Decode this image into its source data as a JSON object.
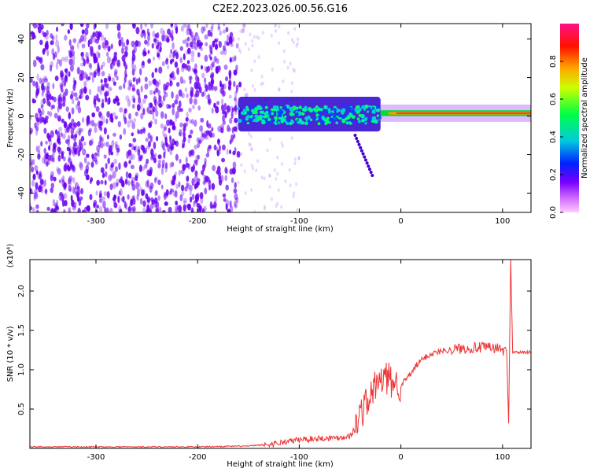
{
  "title": "C2E2.2023.026.00.56.G16",
  "colors": {
    "snr_line": "#ee3333",
    "spectrum_scatter": "#6a00f0",
    "colorbar_stops": [
      "#ff33ff",
      "#8800ff",
      "#0000ff",
      "#00cccc",
      "#00ff00",
      "#ffee00",
      "#ff8800",
      "#ff0033",
      "#ff1177"
    ]
  },
  "chart_data": [
    {
      "type": "heatmap",
      "title": "C2E2.2023.026.00.56.G16",
      "xlabel": "Height of straight line (km)",
      "ylabel": "Frequency (Hz)",
      "xlim": [
        -365,
        128
      ],
      "ylim": [
        -50,
        48
      ],
      "x_ticks": [
        -300,
        -200,
        -100,
        0,
        100
      ],
      "x_tick_labels": [
        "-300",
        "-200",
        "-100",
        "0",
        "100"
      ],
      "y_ticks": [
        -40,
        -20,
        0,
        20,
        40
      ],
      "y_tick_labels": [
        "-40",
        "-20",
        "0",
        "20",
        "40"
      ],
      "colorbar": {
        "label": "Normalized spectral amplitude",
        "range": [
          0,
          1
        ],
        "ticks": [
          0.0,
          0.2,
          0.4,
          0.6,
          0.8
        ],
        "tick_labels": [
          "0.0",
          "0.2",
          "0.4",
          "0.6",
          "0.8"
        ]
      },
      "regions": [
        {
          "name": "broadband noise",
          "x_range": [
            -365,
            -160
          ],
          "freq_range": [
            -50,
            48
          ],
          "amplitude": 0.1
        },
        {
          "name": "ionospheric signal band",
          "x_range": [
            -160,
            -20
          ],
          "freq_range": [
            -8,
            10
          ],
          "amplitude": 0.45
        },
        {
          "name": "direct signal tone",
          "x_range": [
            -20,
            128
          ],
          "freq_range": [
            0,
            3
          ],
          "amplitude": 0.9
        }
      ]
    },
    {
      "type": "line",
      "xlabel": "Height of straight line (km)",
      "ylabel": "SNR (10 * v/v)",
      "y_multiplier_label": "(x10⁴)",
      "xlim": [
        -365,
        128
      ],
      "ylim": [
        0,
        2.4
      ],
      "x_ticks": [
        -300,
        -200,
        -100,
        0,
        100
      ],
      "x_tick_labels": [
        "-300",
        "-200",
        "-100",
        "0",
        "100"
      ],
      "y_ticks": [
        0.5,
        1.0,
        1.5,
        2.0
      ],
      "y_tick_labels": [
        "0.5",
        "1.0",
        "1.5",
        "2.0"
      ],
      "series": [
        {
          "x": [
            -365,
            -300,
            -250,
            -200,
            -150,
            -130,
            -120,
            -110,
            -100,
            -90,
            -80,
            -70,
            -60,
            -50,
            -45,
            -40,
            -35,
            -30,
            -25,
            -20,
            -15,
            -10,
            -5,
            0,
            5,
            10,
            15,
            20,
            25,
            30,
            40,
            50,
            60,
            70,
            80,
            90,
            95,
            100,
            104,
            106,
            108,
            110,
            115,
            120,
            128
          ],
          "y": [
            0.02,
            0.02,
            0.02,
            0.02,
            0.03,
            0.05,
            0.07,
            0.09,
            0.11,
            0.12,
            0.13,
            0.13,
            0.14,
            0.16,
            0.25,
            0.45,
            0.55,
            0.65,
            0.8,
            0.85,
            0.9,
            0.85,
            0.83,
            0.8,
            0.88,
            0.95,
            1.05,
            1.12,
            1.17,
            1.2,
            1.24,
            1.26,
            1.27,
            1.28,
            1.28,
            1.28,
            1.27,
            1.25,
            1.25,
            0.3,
            2.4,
            1.23,
            1.22,
            1.22,
            1.22
          ]
        }
      ]
    }
  ]
}
